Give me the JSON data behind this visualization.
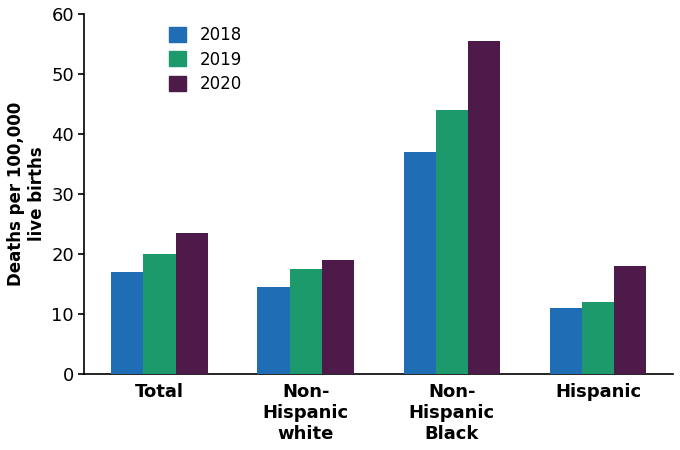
{
  "categories": [
    "Total",
    "Non-\nHispanic\nwhite",
    "Non-\nHispanic\nBlack",
    "Hispanic"
  ],
  "years": [
    "2018",
    "2019",
    "2020"
  ],
  "values": {
    "2018": [
      17,
      14.5,
      37,
      11
    ],
    "2019": [
      20,
      17.5,
      44,
      12
    ],
    "2020": [
      23.5,
      19,
      55.5,
      18
    ]
  },
  "bar_colors": [
    "#1f6eb5",
    "#1d9a6c",
    "#4d1a4a"
  ],
  "ylabel": "Deaths per 100,000\nlive births",
  "ylim": [
    0,
    60
  ],
  "yticks": [
    0,
    10,
    20,
    30,
    40,
    50,
    60
  ],
  "legend_labels": [
    "2018",
    "2019",
    "2020"
  ],
  "bar_width": 0.22,
  "background_color": "#ffffff",
  "tick_fontsize": 13,
  "ylabel_fontsize": 12,
  "legend_fontsize": 12,
  "xlabel_fontsize": 13
}
